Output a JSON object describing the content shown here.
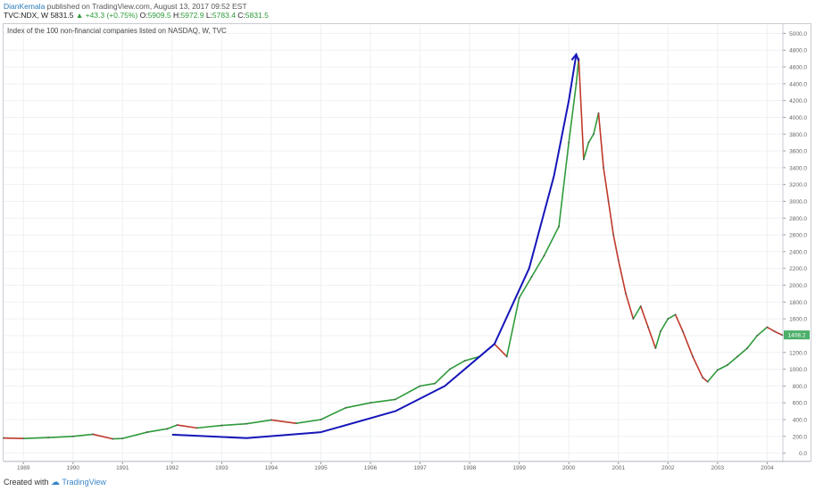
{
  "header": {
    "author": "DianKemala",
    "published": " published on TradingView.com, August 13, 2017 09:52 EST",
    "symbol": "TVC:NDX, W",
    "last": "5831.5",
    "change": "+43.3 (+0.75%)",
    "open_label": "O:",
    "open": "5909.5",
    "high_label": "H:",
    "high": "5972.9",
    "low_label": "L:",
    "low": "5783.4",
    "close_label": "C:",
    "close": "5831.5",
    "up_arrow": "▲"
  },
  "pane_label": "Index of the 100 non-financial companies listed on NASDAQ, W, TVC",
  "footer": {
    "created_with": "Created with",
    "brand": "TradingView"
  },
  "colors": {
    "up": "#2e9b3a",
    "down": "#c0392b",
    "curve": "#1616b8",
    "price_tag": "#4caf6a",
    "grid": "#eef0f3",
    "axis": "#666666"
  },
  "chart_data": {
    "type": "line",
    "title": "Index of the 100 non-financial companies listed on NASDAQ, W, TVC",
    "xlabel": "",
    "ylabel": "",
    "x_ticks": [
      "1989",
      "1990",
      "1991",
      "1992",
      "1993",
      "1994",
      "1995",
      "1996",
      "1997",
      "1998",
      "1999",
      "2000",
      "2001",
      "2002",
      "2003",
      "2004"
    ],
    "y_ticks": [
      "0.0",
      "200.0",
      "400.0",
      "600.0",
      "800.0",
      "1000.0",
      "1200.0",
      "1400.0",
      "1600.0",
      "1800.0",
      "2000.0",
      "2200.0",
      "2400.0",
      "2600.0",
      "2800.0",
      "3000.0",
      "3200.0",
      "3400.0",
      "3600.0",
      "3800.0",
      "4000.0",
      "4200.0",
      "4400.0",
      "4600.0",
      "4800.0",
      "5000.0"
    ],
    "ylim": [
      -100,
      5100
    ],
    "xlim": [
      1988.6,
      2004.3
    ],
    "grid": true,
    "last_price_label": "1408.2",
    "series": [
      {
        "values": [
          [
            1988.6,
            180
          ],
          [
            1989.0,
            175
          ],
          [
            1989.5,
            185
          ],
          [
            1990.0,
            200
          ],
          [
            1990.4,
            225
          ],
          [
            1990.8,
            170
          ],
          [
            1991.0,
            175
          ],
          [
            1991.5,
            250
          ],
          [
            1991.9,
            290
          ],
          [
            1992.1,
            335
          ],
          [
            1992.5,
            300
          ],
          [
            1993.0,
            330
          ],
          [
            1993.5,
            350
          ],
          [
            1994.0,
            395
          ],
          [
            1994.5,
            355
          ],
          [
            1995.0,
            400
          ],
          [
            1995.5,
            540
          ],
          [
            1996.0,
            600
          ],
          [
            1996.5,
            640
          ],
          [
            1997.0,
            800
          ],
          [
            1997.3,
            830
          ],
          [
            1997.6,
            1000
          ],
          [
            1997.9,
            1100
          ],
          [
            1998.2,
            1150
          ],
          [
            1998.5,
            1300
          ],
          [
            1998.75,
            1150
          ],
          [
            1999.0,
            1850
          ],
          [
            1999.25,
            2100
          ],
          [
            1999.5,
            2350
          ],
          [
            1999.8,
            2700
          ],
          [
            2000.0,
            3700
          ],
          [
            2000.15,
            4400
          ],
          [
            2000.2,
            4700
          ],
          [
            2000.3,
            3500
          ],
          [
            2000.4,
            3700
          ],
          [
            2000.5,
            3800
          ],
          [
            2000.6,
            4050
          ],
          [
            2000.7,
            3400
          ],
          [
            2000.8,
            3000
          ],
          [
            2000.9,
            2600
          ],
          [
            2001.0,
            2300
          ],
          [
            2001.15,
            1900
          ],
          [
            2001.3,
            1600
          ],
          [
            2001.45,
            1750
          ],
          [
            2001.6,
            1500
          ],
          [
            2001.75,
            1250
          ],
          [
            2001.85,
            1450
          ],
          [
            2002.0,
            1600
          ],
          [
            2002.15,
            1650
          ],
          [
            2002.3,
            1450
          ],
          [
            2002.5,
            1150
          ],
          [
            2002.7,
            900
          ],
          [
            2002.8,
            850
          ],
          [
            2003.0,
            990
          ],
          [
            2003.2,
            1050
          ],
          [
            2003.4,
            1150
          ],
          [
            2003.6,
            1250
          ],
          [
            2003.8,
            1400
          ],
          [
            2004.0,
            1500
          ],
          [
            2004.15,
            1450
          ],
          [
            2004.3,
            1408
          ]
        ]
      }
    ],
    "annotation_curve": [
      [
        1992.0,
        220
      ],
      [
        1993.5,
        180
      ],
      [
        1995.0,
        250
      ],
      [
        1996.5,
        500
      ],
      [
        1997.5,
        800
      ],
      [
        1998.5,
        1300
      ],
      [
        1999.2,
        2200
      ],
      [
        1999.7,
        3300
      ],
      [
        2000.0,
        4200
      ],
      [
        2000.15,
        4750
      ]
    ]
  }
}
